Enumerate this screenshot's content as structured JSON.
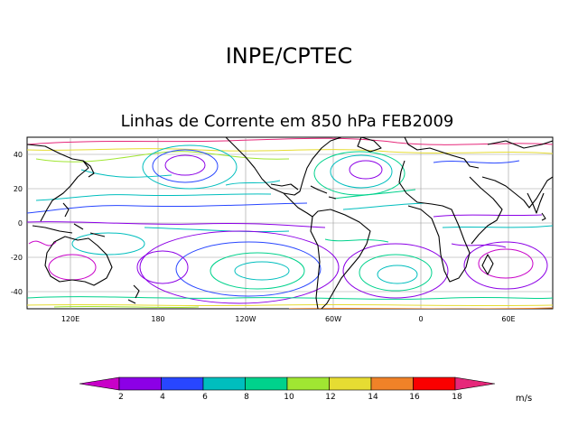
{
  "header": {
    "org_title": "INPE/CPTEC",
    "map_title": "Linhas de Corrente em 850 hPa FEB2009"
  },
  "map": {
    "lat_ticks": [
      "40",
      "20",
      "0",
      "-20",
      "-40"
    ],
    "lon_ticks": [
      "120E",
      "180",
      "120W",
      "60W",
      "0",
      "60E"
    ]
  },
  "colorbar": {
    "units": "m/s",
    "labels": [
      "2",
      "4",
      "6",
      "8",
      "10",
      "12",
      "14",
      "16",
      "18"
    ],
    "colors": [
      "#c800c8",
      "#8c00e6",
      "#2846ff",
      "#00bebe",
      "#00d28c",
      "#a0e632",
      "#e6dc32",
      "#f08228",
      "#fa0000",
      "#e6287a"
    ]
  }
}
